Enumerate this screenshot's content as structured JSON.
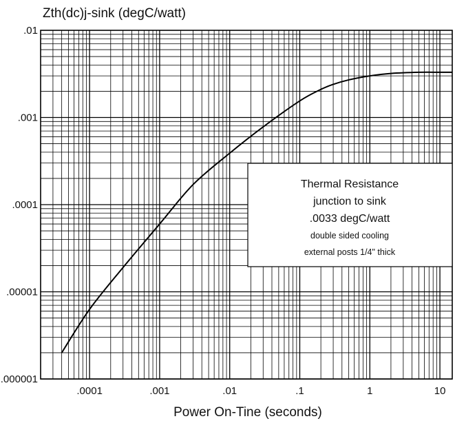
{
  "chart_data": {
    "type": "line",
    "title": "",
    "ylabel": "Zth(dc)j-sink (degC/watt)",
    "xlabel": "Power On-Tine (seconds)",
    "x_scale": "log",
    "y_scale": "log",
    "xlim": [
      2e-05,
      15
    ],
    "ylim": [
      1e-06,
      0.01
    ],
    "grid": true,
    "x_tick_labels": [
      ".0001",
      ".001",
      ".01",
      ".1",
      "1",
      "10"
    ],
    "x_tick_values": [
      0.0001,
      0.001,
      0.01,
      0.1,
      1,
      10
    ],
    "y_tick_labels": [
      ".01",
      ".001",
      ".0001",
      ".00001",
      ".000001"
    ],
    "y_tick_values": [
      0.01,
      0.001,
      0.0001,
      1e-05,
      1e-06
    ],
    "series": [
      {
        "x": [
          4e-05,
          0.0001,
          0.0003,
          0.001,
          0.003,
          0.01,
          0.03,
          0.1,
          0.2,
          0.3,
          0.5,
          1,
          2,
          5,
          10,
          15
        ],
        "y": [
          2e-06,
          6.3e-06,
          1.9e-05,
          6e-05,
          0.00017,
          0.00039,
          0.00078,
          0.00155,
          0.0021,
          0.0024,
          0.0027,
          0.003,
          0.0032,
          0.0033,
          0.0033,
          0.0033
        ]
      }
    ],
    "annotations": {
      "line1": "Thermal Resistance",
      "line2": "junction to sink",
      "line3": ".0033 degC/watt",
      "line4": "double sided cooling",
      "line5": "external posts 1/4\" thick"
    }
  }
}
